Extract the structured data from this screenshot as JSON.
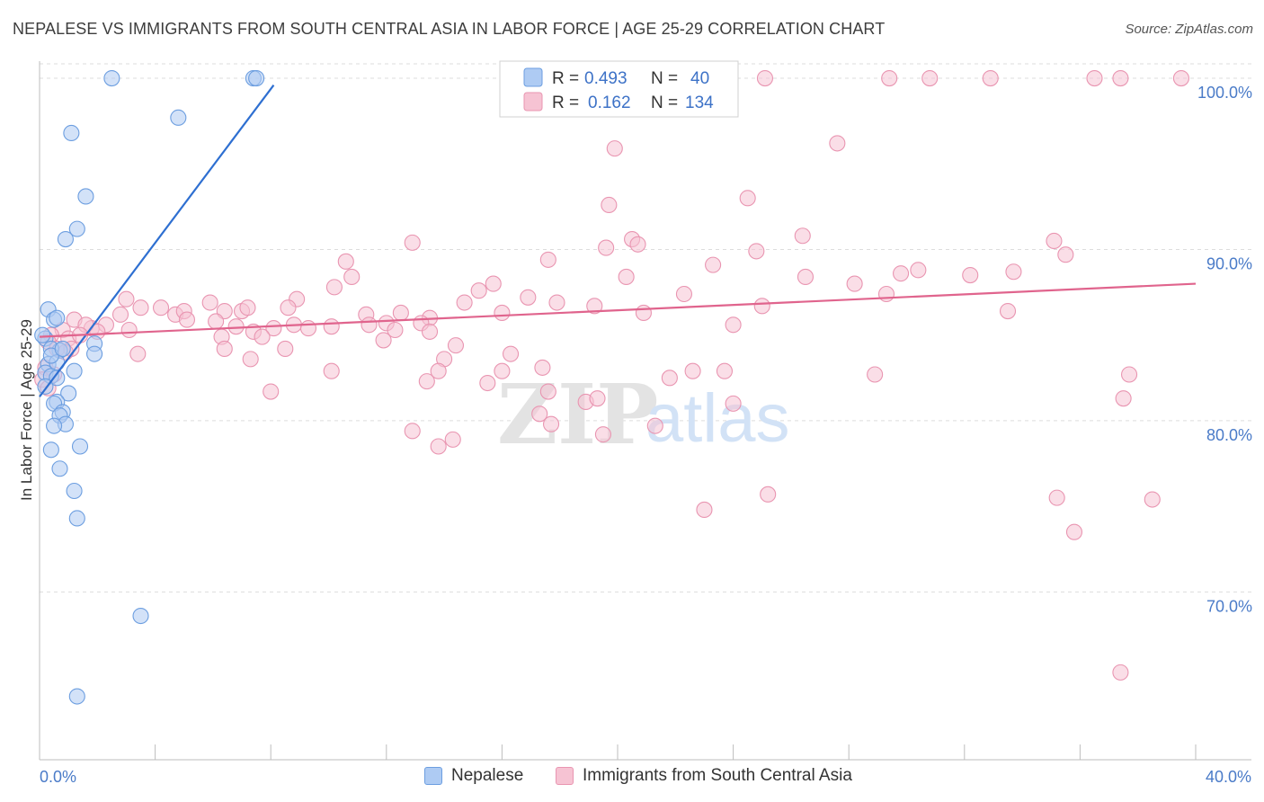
{
  "header": {
    "title": "NEPALESE VS IMMIGRANTS FROM SOUTH CENTRAL ASIA IN LABOR FORCE | AGE 25-29 CORRELATION CHART",
    "source": "Source: ZipAtlas.com"
  },
  "watermark": {
    "zip": "ZIP",
    "atlas": "atlas"
  },
  "colors": {
    "blue_fill": "#aecbf3",
    "blue_stroke": "#6c9ee0",
    "blue_line": "#2e6fd1",
    "pink_fill": "#f6c3d3",
    "pink_stroke": "#e995b1",
    "pink_line": "#e0648d",
    "tick_label": "#4a7bc8",
    "grid": "#dddddd"
  },
  "legend": {
    "rows": [
      {
        "r_label": "R = ",
        "r_value": "0.493",
        "n_label": "N = ",
        "n_value": "40"
      },
      {
        "r_label": "R = ",
        "r_value": "0.162",
        "n_label": "N = ",
        "n_value": "134"
      }
    ]
  },
  "chart_data": {
    "type": "scatter",
    "title": "NEPALESE VS IMMIGRANTS FROM SOUTH CENTRAL ASIA IN LABOR FORCE | AGE 25-29 CORRELATION CHART",
    "xlabel": "",
    "ylabel": "In Labor Force | Age 25-29",
    "xlim": [
      0,
      40
    ],
    "ylim": [
      60.2,
      101.0
    ],
    "x_tick_labels": {
      "min": "0.0%",
      "max": "40.0%"
    },
    "y_ticks": [
      70,
      80,
      90,
      100
    ],
    "y_tick_labels": [
      "70.0%",
      "80.0%",
      "90.0%",
      "100.0%"
    ],
    "grid": true,
    "legend_position": "top-center",
    "series": [
      {
        "name": "Nepalese",
        "color": "#aecbf3",
        "r": 0.493,
        "n": 40,
        "trendline": {
          "x": [
            0.0,
            8.1
          ],
          "y": [
            81.4,
            99.6
          ]
        },
        "points": [
          [
            2.5,
            100.0
          ],
          [
            7.4,
            100.0
          ],
          [
            7.5,
            100.0
          ],
          [
            4.8,
            97.7
          ],
          [
            1.1,
            96.8
          ],
          [
            1.6,
            93.1
          ],
          [
            1.3,
            91.2
          ],
          [
            0.9,
            90.6
          ],
          [
            0.3,
            86.5
          ],
          [
            0.5,
            85.9
          ],
          [
            0.2,
            84.8
          ],
          [
            0.7,
            84.1
          ],
          [
            0.4,
            84.2
          ],
          [
            1.9,
            84.5
          ],
          [
            1.9,
            83.9
          ],
          [
            0.3,
            83.3
          ],
          [
            0.6,
            83.4
          ],
          [
            0.2,
            82.8
          ],
          [
            0.4,
            82.6
          ],
          [
            0.6,
            82.5
          ],
          [
            1.2,
            82.9
          ],
          [
            1.0,
            81.6
          ],
          [
            0.6,
            81.1
          ],
          [
            0.5,
            81.0
          ],
          [
            0.8,
            80.5
          ],
          [
            0.7,
            80.3
          ],
          [
            0.9,
            79.8
          ],
          [
            0.5,
            79.7
          ],
          [
            1.4,
            78.5
          ],
          [
            0.4,
            78.3
          ],
          [
            0.7,
            77.2
          ],
          [
            1.2,
            75.9
          ],
          [
            1.3,
            74.3
          ],
          [
            3.5,
            68.6
          ],
          [
            1.3,
            63.9
          ],
          [
            0.1,
            85.0
          ],
          [
            0.2,
            82.0
          ],
          [
            0.4,
            83.8
          ],
          [
            0.8,
            84.2
          ],
          [
            0.6,
            86.0
          ]
        ]
      },
      {
        "name": "Immigrants from South Central Asia",
        "color": "#f6c3d3",
        "r": 0.162,
        "n": 134,
        "trendline": {
          "x": [
            0.0,
            40.0
          ],
          "y": [
            84.9,
            88.0
          ]
        },
        "points": [
          [
            25.1,
            100.0
          ],
          [
            29.4,
            100.0
          ],
          [
            30.8,
            100.0
          ],
          [
            32.9,
            100.0
          ],
          [
            36.5,
            100.0
          ],
          [
            37.4,
            100.0
          ],
          [
            39.5,
            100.0
          ],
          [
            19.9,
            95.9
          ],
          [
            27.6,
            96.2
          ],
          [
            19.7,
            92.6
          ],
          [
            24.5,
            93.0
          ],
          [
            12.9,
            90.4
          ],
          [
            19.6,
            90.1
          ],
          [
            20.5,
            90.6
          ],
          [
            20.7,
            90.3
          ],
          [
            24.8,
            89.9
          ],
          [
            26.4,
            90.8
          ],
          [
            35.1,
            90.5
          ],
          [
            35.5,
            89.7
          ],
          [
            10.6,
            89.3
          ],
          [
            17.6,
            89.4
          ],
          [
            23.3,
            89.1
          ],
          [
            29.8,
            88.6
          ],
          [
            30.4,
            88.8
          ],
          [
            33.7,
            88.7
          ],
          [
            10.8,
            88.4
          ],
          [
            20.3,
            88.4
          ],
          [
            26.5,
            88.4
          ],
          [
            32.2,
            88.5
          ],
          [
            10.2,
            87.8
          ],
          [
            15.7,
            88.0
          ],
          [
            28.2,
            88.0
          ],
          [
            15.2,
            87.6
          ],
          [
            22.3,
            87.4
          ],
          [
            29.3,
            87.4
          ],
          [
            3.0,
            87.1
          ],
          [
            8.9,
            87.1
          ],
          [
            14.7,
            86.9
          ],
          [
            16.9,
            87.2
          ],
          [
            17.9,
            86.9
          ],
          [
            25.0,
            86.7
          ],
          [
            5.9,
            86.9
          ],
          [
            3.5,
            86.6
          ],
          [
            4.2,
            86.6
          ],
          [
            4.7,
            86.2
          ],
          [
            5.0,
            86.4
          ],
          [
            6.4,
            86.4
          ],
          [
            7.0,
            86.4
          ],
          [
            7.2,
            86.6
          ],
          [
            8.6,
            86.6
          ],
          [
            11.3,
            86.2
          ],
          [
            13.5,
            86.0
          ],
          [
            12.5,
            86.3
          ],
          [
            16.0,
            86.3
          ],
          [
            19.2,
            86.7
          ],
          [
            20.9,
            86.3
          ],
          [
            33.5,
            86.4
          ],
          [
            2.8,
            86.2
          ],
          [
            1.2,
            85.9
          ],
          [
            1.8,
            85.4
          ],
          [
            2.3,
            85.6
          ],
          [
            3.1,
            85.3
          ],
          [
            5.1,
            85.9
          ],
          [
            6.1,
            85.8
          ],
          [
            6.8,
            85.5
          ],
          [
            7.4,
            85.2
          ],
          [
            8.1,
            85.4
          ],
          [
            8.8,
            85.6
          ],
          [
            9.3,
            85.4
          ],
          [
            10.1,
            85.5
          ],
          [
            11.4,
            85.6
          ],
          [
            12.0,
            85.7
          ],
          [
            13.2,
            85.7
          ],
          [
            13.5,
            85.2
          ],
          [
            12.3,
            85.3
          ],
          [
            24.0,
            85.6
          ],
          [
            0.8,
            85.3
          ],
          [
            1.6,
            85.6
          ],
          [
            2.0,
            85.2
          ],
          [
            0.4,
            85.0
          ],
          [
            1.0,
            84.8
          ],
          [
            0.3,
            84.6
          ],
          [
            0.6,
            84.2
          ],
          [
            1.1,
            84.2
          ],
          [
            6.3,
            84.9
          ],
          [
            7.7,
            84.9
          ],
          [
            11.9,
            84.7
          ],
          [
            3.4,
            83.9
          ],
          [
            6.4,
            84.2
          ],
          [
            8.5,
            84.2
          ],
          [
            14.4,
            84.4
          ],
          [
            14.0,
            83.6
          ],
          [
            16.3,
            83.9
          ],
          [
            7.3,
            83.6
          ],
          [
            0.2,
            83.1
          ],
          [
            0.5,
            82.7
          ],
          [
            10.1,
            82.9
          ],
          [
            13.8,
            82.9
          ],
          [
            16.0,
            82.9
          ],
          [
            17.4,
            83.1
          ],
          [
            21.8,
            82.5
          ],
          [
            22.6,
            82.9
          ],
          [
            23.7,
            82.9
          ],
          [
            28.9,
            82.7
          ],
          [
            37.7,
            82.7
          ],
          [
            13.4,
            82.3
          ],
          [
            15.5,
            82.2
          ],
          [
            8.0,
            81.7
          ],
          [
            17.6,
            81.7
          ],
          [
            18.9,
            81.1
          ],
          [
            19.3,
            81.3
          ],
          [
            24.0,
            81.0
          ],
          [
            37.5,
            81.3
          ],
          [
            17.3,
            80.4
          ],
          [
            17.7,
            79.8
          ],
          [
            21.3,
            79.7
          ],
          [
            12.9,
            79.4
          ],
          [
            19.5,
            79.2
          ],
          [
            14.3,
            78.9
          ],
          [
            13.8,
            78.5
          ],
          [
            25.2,
            75.7
          ],
          [
            35.2,
            75.5
          ],
          [
            38.5,
            75.4
          ],
          [
            23.0,
            74.8
          ],
          [
            35.8,
            73.5
          ],
          [
            37.4,
            65.3
          ],
          [
            0.1,
            82.4
          ],
          [
            0.3,
            81.9
          ],
          [
            0.9,
            84.0
          ],
          [
            1.4,
            85.0
          ]
        ]
      }
    ]
  },
  "footer": {
    "legend": [
      {
        "name": "Nepalese"
      },
      {
        "name": "Immigrants from South Central Asia"
      }
    ]
  }
}
